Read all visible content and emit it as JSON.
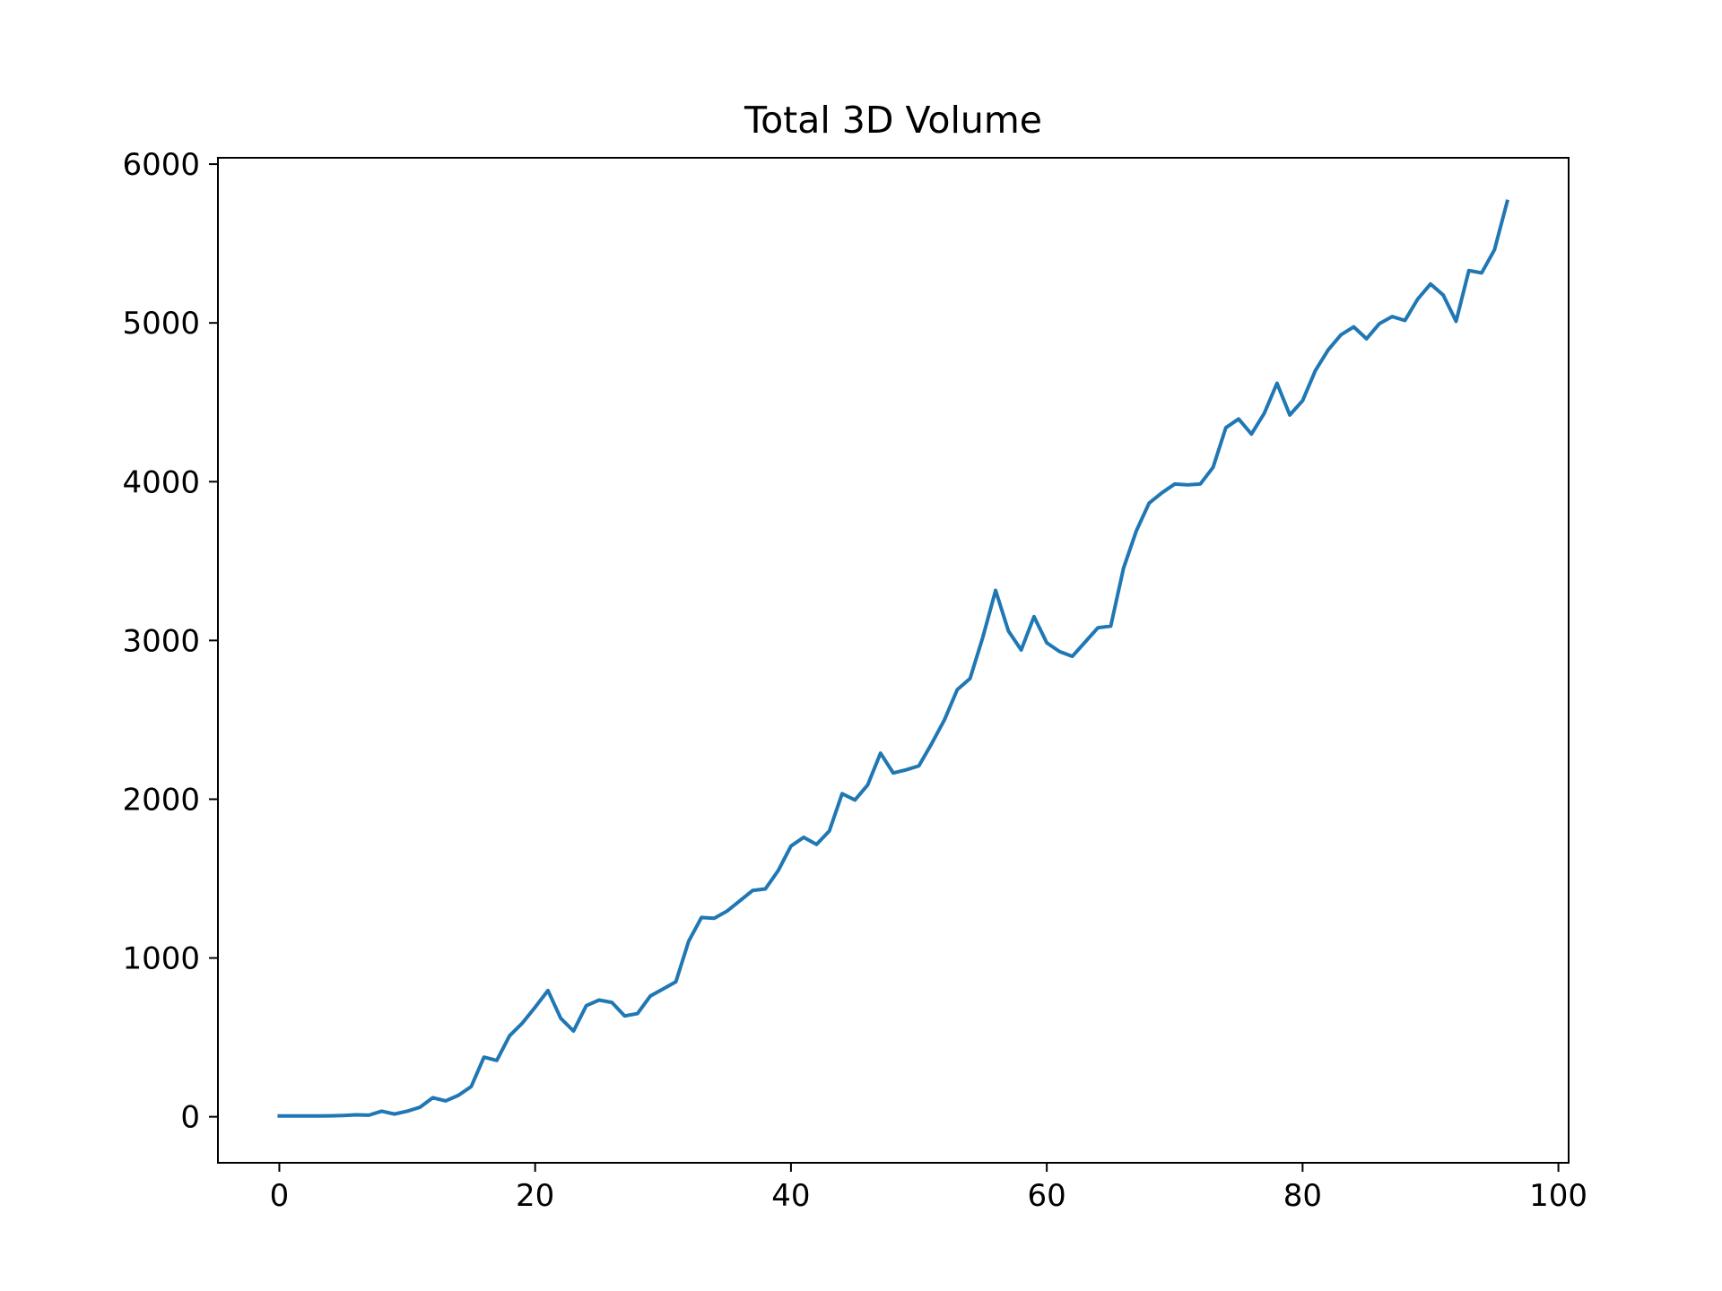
{
  "chart_data": {
    "type": "line",
    "title": "Total 3D Volume",
    "xlabel": "",
    "ylabel": "",
    "xlim": [
      -4.8,
      100.8
    ],
    "ylim": [
      -290,
      6040
    ],
    "x_ticks": [
      0,
      20,
      40,
      60,
      80,
      100
    ],
    "y_ticks": [
      0,
      1000,
      2000,
      3000,
      4000,
      5000,
      6000
    ],
    "x_tick_labels": [
      "0",
      "20",
      "40",
      "60",
      "80",
      "100"
    ],
    "y_tick_labels": [
      "0",
      "1000",
      "2000",
      "3000",
      "4000",
      "5000",
      "6000"
    ],
    "grid": false,
    "legend": "none",
    "colors": {
      "line": "#1f77b4",
      "axes": "#000000",
      "background": "#ffffff"
    },
    "series": [
      {
        "x": [
          0,
          1,
          2,
          3,
          4,
          5,
          6,
          7,
          8,
          9,
          10,
          11,
          12,
          13,
          14,
          15,
          16,
          17,
          18,
          19,
          20,
          21,
          22,
          23,
          24,
          25,
          26,
          27,
          28,
          29,
          30,
          31,
          32,
          33,
          34,
          35,
          36,
          37,
          38,
          39,
          40,
          41,
          42,
          43,
          44,
          45,
          46,
          47,
          48,
          49,
          50,
          51,
          52,
          53,
          54,
          55,
          56,
          57,
          58,
          59,
          60,
          61,
          62,
          63,
          64,
          65,
          66,
          67,
          68,
          69,
          70,
          71,
          72,
          73,
          74,
          75,
          76,
          77,
          78,
          79,
          80,
          81,
          82,
          83,
          84,
          85,
          86,
          87,
          88,
          89,
          90,
          91,
          92,
          93,
          94,
          95,
          96
        ],
        "values": [
          5,
          5,
          5,
          5,
          6,
          8,
          12,
          10,
          35,
          17,
          35,
          60,
          120,
          100,
          135,
          190,
          375,
          355,
          510,
          590,
          690,
          795,
          620,
          540,
          700,
          735,
          720,
          635,
          650,
          760,
          805,
          850,
          1105,
          1255,
          1250,
          1295,
          1360,
          1425,
          1435,
          1550,
          1705,
          1760,
          1715,
          1800,
          2035,
          1995,
          2090,
          2290,
          2165,
          2185,
          2210,
          2350,
          2500,
          2690,
          2760,
          3020,
          3315,
          3060,
          2940,
          3150,
          2985,
          2930,
          2900,
          2990,
          3080,
          3090,
          3455,
          3690,
          3865,
          3930,
          3985,
          3980,
          3985,
          4090,
          4340,
          4395,
          4300,
          4430,
          4620,
          4420,
          4510,
          4700,
          4830,
          4925,
          4975,
          4900,
          4995,
          5040,
          5015,
          5150,
          5245,
          5175,
          5010,
          5330,
          5315,
          5460,
          5765
        ]
      }
    ]
  }
}
